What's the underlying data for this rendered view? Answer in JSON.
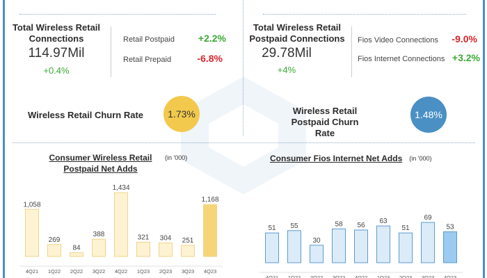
{
  "left_panel": {
    "title": "Total Wireless Retail Connections",
    "value": "114.97Mil",
    "change": "+0.4%",
    "items": [
      {
        "label": "Retail Postpaid",
        "value": "+2.2%",
        "color": "#3aaa35"
      },
      {
        "label": "Retail Prepaid",
        "value": "-6.8%",
        "color": "#d9262c"
      }
    ],
    "churn_label": "Wireless Retail Churn Rate",
    "churn_value": "1.73%",
    "churn_color": "#f2c94c"
  },
  "right_panel": {
    "title": "Total Wireless Retail Postpaid Connections",
    "value": "29.78Mil",
    "change": "+4%",
    "items": [
      {
        "label": "Fios Video Connections",
        "value": "-9.0%",
        "color": "#d9262c"
      },
      {
        "label": "Fios Internet Connections",
        "value": "+3.2%",
        "color": "#3aaa35"
      }
    ],
    "churn_label": "Wireless Retail Postpaid Churn Rate",
    "churn_value": "1.48%",
    "churn_color": "#4a90c4"
  },
  "chart_data": [
    {
      "type": "bar",
      "title": "Consumer Wireless Retail Postpaid Net Adds",
      "unit": "(in '000)",
      "categories": [
        "4Q21",
        "1Q22",
        "2Q22",
        "3Q22",
        "4Q22",
        "1Q23",
        "2Q23",
        "3Q23",
        "4Q23"
      ],
      "values": [
        1058,
        269,
        84,
        388,
        1434,
        321,
        304,
        251,
        1168
      ],
      "labels": [
        "1,058",
        "269",
        "84",
        "388",
        "1,434",
        "321",
        "304",
        "251",
        "1,168"
      ],
      "bar_color": "#fdf3d2",
      "highlight_color": "#f5d577",
      "stroke": "#f0d58a"
    },
    {
      "type": "bar",
      "title": "Consumer Fios Internet Net Adds",
      "unit": "(in '000)",
      "categories": [
        "4Q21",
        "1Q22",
        "2Q22",
        "3Q22",
        "4Q22",
        "1Q23",
        "2Q23",
        "3Q23",
        "4Q23"
      ],
      "values": [
        51,
        55,
        30,
        58,
        56,
        63,
        51,
        69,
        53
      ],
      "labels": [
        "51",
        "55",
        "30",
        "58",
        "56",
        "63",
        "51",
        "69",
        "53"
      ],
      "bar_color": "#dcebf8",
      "highlight_color": "#9ccaf0",
      "stroke": "#5b9bd0"
    }
  ]
}
